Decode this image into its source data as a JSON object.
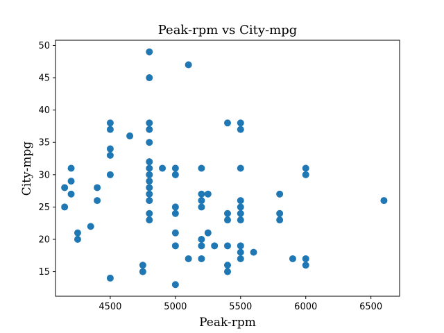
{
  "chart_data": {
    "type": "scatter",
    "title": "Peak-rpm vs City-mpg",
    "xlabel": "Peak-rpm",
    "ylabel": "City-mpg",
    "xlim": [
      4080,
      6720
    ],
    "ylim": [
      11.2,
      50.8
    ],
    "xticks": [
      4500,
      5000,
      5500,
      6000,
      6500
    ],
    "yticks": [
      15,
      20,
      25,
      30,
      35,
      40,
      45,
      50
    ],
    "color": "#1f77b4",
    "grid": false,
    "points": [
      [
        4150,
        28
      ],
      [
        4150,
        25
      ],
      [
        4200,
        31
      ],
      [
        4200,
        29
      ],
      [
        4200,
        27
      ],
      [
        4250,
        21
      ],
      [
        4250,
        20
      ],
      [
        4350,
        22
      ],
      [
        4400,
        28
      ],
      [
        4400,
        26
      ],
      [
        4500,
        38
      ],
      [
        4500,
        37
      ],
      [
        4500,
        34
      ],
      [
        4500,
        33
      ],
      [
        4500,
        30
      ],
      [
        4500,
        14
      ],
      [
        4650,
        36
      ],
      [
        4750,
        16
      ],
      [
        4750,
        15
      ],
      [
        4800,
        49
      ],
      [
        4800,
        45
      ],
      [
        4800,
        38
      ],
      [
        4800,
        37
      ],
      [
        4800,
        35
      ],
      [
        4800,
        32
      ],
      [
        4800,
        31
      ],
      [
        4800,
        30
      ],
      [
        4800,
        29
      ],
      [
        4800,
        28
      ],
      [
        4800,
        27
      ],
      [
        4800,
        26
      ],
      [
        4800,
        24
      ],
      [
        4800,
        23
      ],
      [
        4900,
        31
      ],
      [
        5000,
        31
      ],
      [
        5000,
        30
      ],
      [
        5000,
        25
      ],
      [
        5000,
        24
      ],
      [
        5000,
        21
      ],
      [
        5000,
        19
      ],
      [
        5000,
        13
      ],
      [
        5100,
        47
      ],
      [
        5100,
        17
      ],
      [
        5200,
        31
      ],
      [
        5200,
        27
      ],
      [
        5200,
        26
      ],
      [
        5200,
        25
      ],
      [
        5200,
        20
      ],
      [
        5200,
        19
      ],
      [
        5200,
        17
      ],
      [
        5250,
        27
      ],
      [
        5250,
        21
      ],
      [
        5300,
        19
      ],
      [
        5400,
        38
      ],
      [
        5400,
        24
      ],
      [
        5400,
        23
      ],
      [
        5400,
        19
      ],
      [
        5400,
        16
      ],
      [
        5400,
        15
      ],
      [
        5500,
        38
      ],
      [
        5500,
        37
      ],
      [
        5500,
        31
      ],
      [
        5500,
        26
      ],
      [
        5500,
        25
      ],
      [
        5500,
        24
      ],
      [
        5500,
        23
      ],
      [
        5500,
        19
      ],
      [
        5500,
        18
      ],
      [
        5500,
        17
      ],
      [
        5600,
        18
      ],
      [
        5800,
        27
      ],
      [
        5800,
        24
      ],
      [
        5800,
        23
      ],
      [
        5900,
        17
      ],
      [
        6000,
        31
      ],
      [
        6000,
        30
      ],
      [
        6000,
        17
      ],
      [
        6000,
        16
      ],
      [
        6600,
        26
      ]
    ]
  }
}
